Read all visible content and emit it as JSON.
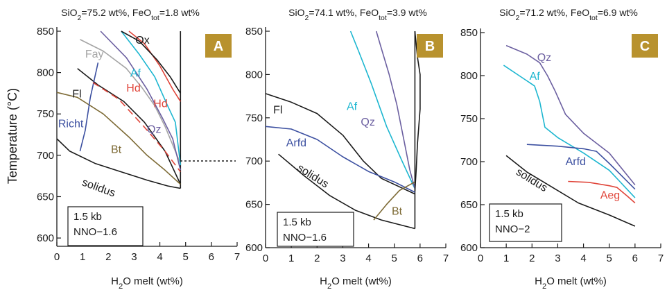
{
  "figure": {
    "ylabel": "Temperature (°C)",
    "colors": {
      "black": "#1a1a1a",
      "gray": "#a5a5a5",
      "hd": "#e0453a",
      "af": "#1cb6d0",
      "qz": "#6b5fa0",
      "blue": "#3b4fa0",
      "bt": "#7d6a35",
      "badge": "#b8922e"
    }
  },
  "chart_data": [
    {
      "type": "line",
      "title_parts": [
        "SiO",
        "2",
        "=75.2 wt%, FeO",
        "tot",
        "=1.8 wt%"
      ],
      "xlabel_parts": [
        "H",
        "2",
        "O melt (wt%)"
      ],
      "ylabel": "Temperature (°C)",
      "xlim": [
        0,
        7
      ],
      "ylim": [
        590,
        850
      ],
      "xticks": [
        0,
        1,
        2,
        3,
        4,
        5,
        6,
        7
      ],
      "yticks": [
        600,
        650,
        700,
        750,
        800,
        850
      ],
      "badge": "A",
      "info": [
        "1.5 kb",
        "NNO−1.6"
      ],
      "water_saturation_x": 4.8,
      "series": [
        {
          "name": "solidus",
          "color": "#1a1a1a",
          "points": [
            [
              0,
              720
            ],
            [
              0.5,
              705
            ],
            [
              1.5,
              690
            ],
            [
              2.5,
              680
            ],
            [
              3.5,
              670
            ],
            [
              4.3,
              663
            ],
            [
              4.8,
              660
            ]
          ]
        },
        {
          "name": "Fl",
          "color": "#1a1a1a",
          "points": [
            [
              0.8,
              805
            ],
            [
              1.6,
              785
            ],
            [
              2.6,
              765
            ],
            [
              3.4,
              740
            ],
            [
              4.2,
              705
            ],
            [
              4.8,
              665
            ]
          ]
        },
        {
          "name": "Bt",
          "color": "#7d6a35",
          "points": [
            [
              0,
              776
            ],
            [
              0.8,
              770
            ],
            [
              1.8,
              750
            ],
            [
              2.8,
              722
            ],
            [
              3.5,
              700
            ],
            [
              4.2,
              682
            ],
            [
              4.8,
              665
            ]
          ]
        },
        {
          "name": "Richt",
          "color": "#3b4fa0",
          "points": [
            [
              0.9,
              705
            ],
            [
              1.1,
              730
            ],
            [
              1.3,
              770
            ],
            [
              1.6,
              812
            ]
          ]
        },
        {
          "name": "Hd",
          "color": "#e0453a",
          "dashed": true,
          "points": [
            [
              1.4,
              788
            ],
            [
              2.4,
              768
            ],
            [
              3.4,
              734
            ],
            [
              4.2,
              705
            ],
            [
              4.8,
              680
            ]
          ]
        },
        {
          "name": "Fay",
          "color": "#a5a5a5",
          "points": [
            [
              0.9,
              840
            ],
            [
              1.8,
              826
            ],
            [
              2.7,
              805
            ],
            [
              3.3,
              782
            ],
            [
              3.8,
              760
            ],
            [
              4.2,
              735
            ],
            [
              4.8,
              690
            ]
          ]
        },
        {
          "name": "Af",
          "color": "#1cb6d0",
          "points": [
            [
              2.5,
              850
            ],
            [
              3.2,
              822
            ],
            [
              3.8,
              795
            ],
            [
              4.3,
              760
            ],
            [
              4.6,
              740
            ],
            [
              4.8,
              688
            ]
          ]
        },
        {
          "name": "Qz",
          "color": "#6b5fa0",
          "points": [
            [
              1.7,
              850
            ],
            [
              2.7,
              818
            ],
            [
              3.5,
              780
            ],
            [
              4.1,
              745
            ],
            [
              4.5,
              720
            ],
            [
              4.8,
              682
            ]
          ]
        },
        {
          "name": "Hd",
          "color": "#e0453a",
          "points": [
            [
              2.8,
              850
            ],
            [
              3.4,
              835
            ],
            [
              4.0,
              808
            ],
            [
              4.5,
              780
            ],
            [
              4.8,
              765
            ]
          ]
        },
        {
          "name": "Ox",
          "color": "#1a1a1a",
          "points": [
            [
              2.5,
              850
            ],
            [
              3.2,
              838
            ],
            [
              3.9,
              815
            ],
            [
              4.4,
              795
            ],
            [
              4.8,
              775
            ]
          ]
        }
      ],
      "labels": [
        {
          "text": "Ox",
          "x": 3.05,
          "y": 835,
          "color": "#1a1a1a"
        },
        {
          "text": "Fay",
          "x": 1.1,
          "y": 818,
          "color": "#a5a5a5"
        },
        {
          "text": "Af",
          "x": 2.85,
          "y": 795,
          "color": "#1cb6d0"
        },
        {
          "text": "Hd",
          "x": 2.7,
          "y": 777,
          "color": "#e0453a"
        },
        {
          "text": "Fl",
          "x": 0.6,
          "y": 770,
          "color": "#1a1a1a"
        },
        {
          "text": "Hd",
          "x": 3.75,
          "y": 758,
          "color": "#e0453a"
        },
        {
          "text": "Richt",
          "x": 0.05,
          "y": 734,
          "color": "#3b4fa0"
        },
        {
          "text": "Qz",
          "x": 3.5,
          "y": 727,
          "color": "#6b5fa0"
        },
        {
          "text": "Bt",
          "x": 2.1,
          "y": 703,
          "color": "#7d6a35"
        },
        {
          "text": "solidus",
          "x": 0.95,
          "y": 664,
          "color": "#1a1a1a",
          "rotate": 20
        }
      ]
    },
    {
      "type": "line",
      "title_parts": [
        "SiO",
        "2",
        "=74.1 wt%, FeO",
        "tot",
        "=3.9 wt%"
      ],
      "xlabel_parts": [
        "H",
        "2",
        "O melt (wt%)"
      ],
      "xlim": [
        0,
        7
      ],
      "ylim": [
        600,
        850
      ],
      "xticks": [
        0,
        1,
        2,
        3,
        4,
        5,
        6,
        7
      ],
      "yticks": [
        600,
        650,
        700,
        750,
        800,
        850
      ],
      "badge": "B",
      "info": [
        "1.5 kb",
        "NNO−1.6"
      ],
      "water_saturation_x": 5.8,
      "series": [
        {
          "name": "solidus",
          "color": "#1a1a1a",
          "points": [
            [
              0.5,
              708
            ],
            [
              1.5,
              683
            ],
            [
              2.5,
              660
            ],
            [
              3.5,
              643
            ],
            [
              4.5,
              632
            ],
            [
              5.8,
              622
            ]
          ]
        },
        {
          "name": "Fl",
          "color": "#1a1a1a",
          "points": [
            [
              0,
              778
            ],
            [
              1.0,
              768
            ],
            [
              2.0,
              755
            ],
            [
              3.0,
              730
            ],
            [
              3.8,
              700
            ],
            [
              4.5,
              680
            ],
            [
              5.8,
              662
            ]
          ]
        },
        {
          "name": "Arfd",
          "color": "#3b4fa0",
          "points": [
            [
              0,
              740
            ],
            [
              1.0,
              737
            ],
            [
              2.0,
              725
            ],
            [
              3.0,
              705
            ],
            [
              4.0,
              688
            ],
            [
              5.0,
              676
            ],
            [
              5.8,
              664
            ]
          ]
        },
        {
          "name": "Af",
          "color": "#1cb6d0",
          "points": [
            [
              3.3,
              850
            ],
            [
              3.6,
              828
            ],
            [
              4.1,
              790
            ],
            [
              4.7,
              740
            ],
            [
              5.3,
              700
            ],
            [
              5.8,
              668
            ]
          ]
        },
        {
          "name": "Qz",
          "color": "#6b5fa0",
          "points": [
            [
              4.3,
              850
            ],
            [
              4.5,
              830
            ],
            [
              4.8,
              800
            ],
            [
              5.1,
              765
            ],
            [
              5.4,
              720
            ],
            [
              5.6,
              690
            ],
            [
              5.8,
              668
            ]
          ]
        },
        {
          "name": "Bt",
          "color": "#7d6a35",
          "points": [
            [
              4.2,
              632
            ],
            [
              4.7,
              650
            ],
            [
              5.2,
              666
            ],
            [
              5.8,
              676
            ]
          ]
        },
        {
          "name": "",
          "color": "#1a1a1a",
          "points": [
            [
              5.8,
              850
            ],
            [
              5.9,
              820
            ],
            [
              6.0,
              800
            ],
            [
              6.0,
              760
            ],
            [
              5.9,
              720
            ],
            [
              5.85,
              690
            ],
            [
              5.8,
              665
            ]
          ]
        }
      ],
      "labels": [
        {
          "text": "Fl",
          "x": 0.3,
          "y": 755,
          "color": "#1a1a1a"
        },
        {
          "text": "Af",
          "x": 3.15,
          "y": 759,
          "color": "#1cb6d0"
        },
        {
          "text": "Qz",
          "x": 3.7,
          "y": 741,
          "color": "#6b5fa0"
        },
        {
          "text": "Arfd",
          "x": 0.8,
          "y": 717,
          "color": "#3b4fa0"
        },
        {
          "text": "solidus",
          "x": 1.2,
          "y": 690,
          "color": "#1a1a1a",
          "rotate": 32
        },
        {
          "text": "Bt",
          "x": 4.9,
          "y": 638,
          "color": "#7d6a35"
        }
      ]
    },
    {
      "type": "line",
      "title_parts": [
        "SiO",
        "2",
        "=71.2 wt%, FeO",
        "tot",
        "=6.9 wt%"
      ],
      "xlabel_parts": [
        "H",
        "2",
        "O melt (wt%)"
      ],
      "xlim": [
        0,
        7
      ],
      "ylim": [
        600,
        850
      ],
      "xticks": [
        0,
        1,
        2,
        3,
        4,
        5,
        6,
        7
      ],
      "yticks": [
        600,
        650,
        700,
        750,
        800,
        850
      ],
      "badge": "C",
      "info": [
        "1.5 kb",
        "NNO−2"
      ],
      "series": [
        {
          "name": "solidus",
          "color": "#1a1a1a",
          "points": [
            [
              1.0,
              707
            ],
            [
              1.8,
              688
            ],
            [
              2.8,
              670
            ],
            [
              3.8,
              652
            ],
            [
              5.0,
              638
            ],
            [
              6.0,
              625
            ]
          ]
        },
        {
          "name": "Qz",
          "color": "#6b5fa0",
          "points": [
            [
              1.0,
              835
            ],
            [
              1.8,
              825
            ],
            [
              2.3,
              815
            ],
            [
              2.6,
              800
            ],
            [
              2.9,
              782
            ],
            [
              3.3,
              755
            ],
            [
              4.0,
              733
            ],
            [
              5.0,
              710
            ],
            [
              6.0,
              673
            ]
          ]
        },
        {
          "name": "Af",
          "color": "#1cb6d0",
          "points": [
            [
              0.9,
              812
            ],
            [
              1.5,
              800
            ],
            [
              2.1,
              788
            ],
            [
              2.3,
              770
            ],
            [
              2.5,
              740
            ],
            [
              3.0,
              728
            ],
            [
              4.0,
              710
            ],
            [
              5.0,
              690
            ],
            [
              6.0,
              658
            ]
          ]
        },
        {
          "name": "Arfd",
          "color": "#3b4fa0",
          "points": [
            [
              1.8,
              720
            ],
            [
              3.0,
              718
            ],
            [
              4.0,
              715
            ],
            [
              4.5,
              712
            ],
            [
              5.0,
              698
            ],
            [
              5.5,
              683
            ],
            [
              6.0,
              668
            ]
          ]
        },
        {
          "name": "Aeg",
          "color": "#e0453a",
          "points": [
            [
              3.4,
              677
            ],
            [
              4.2,
              676
            ],
            [
              5.0,
              672
            ],
            [
              5.3,
              670
            ],
            [
              5.7,
              660
            ],
            [
              6.0,
              652
            ]
          ]
        }
      ],
      "labels": [
        {
          "text": "Qz",
          "x": 2.2,
          "y": 817,
          "color": "#6b5fa0"
        },
        {
          "text": "Af",
          "x": 1.9,
          "y": 795,
          "color": "#1cb6d0"
        },
        {
          "text": "Arfd",
          "x": 3.3,
          "y": 696,
          "color": "#3b4fa0"
        },
        {
          "text": "solidus",
          "x": 1.35,
          "y": 686,
          "color": "#1a1a1a",
          "rotate": 32
        },
        {
          "text": "Aeg",
          "x": 4.65,
          "y": 657,
          "color": "#e0453a"
        }
      ]
    }
  ]
}
